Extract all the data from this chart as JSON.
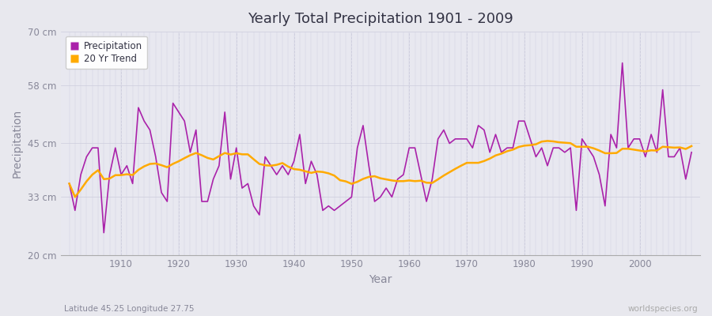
{
  "title": "Yearly Total Precipitation 1901 - 2009",
  "xlabel": "Year",
  "ylabel": "Precipitation",
  "subtitle": "Latitude 45.25 Longitude 27.75",
  "watermark": "worldspecies.org",
  "ylim": [
    20,
    70
  ],
  "yticks": [
    20,
    33,
    45,
    58,
    70
  ],
  "ytick_labels": [
    "20 cm",
    "33 cm",
    "45 cm",
    "58 cm",
    "70 cm"
  ],
  "years": [
    1901,
    1902,
    1903,
    1904,
    1905,
    1906,
    1907,
    1908,
    1909,
    1910,
    1911,
    1912,
    1913,
    1914,
    1915,
    1916,
    1917,
    1918,
    1919,
    1920,
    1921,
    1922,
    1923,
    1924,
    1925,
    1926,
    1927,
    1928,
    1929,
    1930,
    1931,
    1932,
    1933,
    1934,
    1935,
    1936,
    1937,
    1938,
    1939,
    1940,
    1941,
    1942,
    1943,
    1944,
    1945,
    1946,
    1947,
    1948,
    1949,
    1950,
    1951,
    1952,
    1953,
    1954,
    1955,
    1956,
    1957,
    1958,
    1959,
    1960,
    1961,
    1962,
    1963,
    1964,
    1965,
    1966,
    1967,
    1968,
    1969,
    1970,
    1971,
    1972,
    1973,
    1974,
    1975,
    1976,
    1977,
    1978,
    1979,
    1980,
    1981,
    1982,
    1983,
    1984,
    1985,
    1986,
    1987,
    1988,
    1989,
    1990,
    1991,
    1992,
    1993,
    1994,
    1995,
    1996,
    1997,
    1998,
    1999,
    2000,
    2001,
    2002,
    2003,
    2004,
    2005,
    2006,
    2007,
    2008,
    2009
  ],
  "precip": [
    36.0,
    30.0,
    38.0,
    42.0,
    44.0,
    44.0,
    25.0,
    38.0,
    44.0,
    38.0,
    40.0,
    36.0,
    53.0,
    50.0,
    48.0,
    42.0,
    34.0,
    32.0,
    54.0,
    52.0,
    50.0,
    43.0,
    48.0,
    32.0,
    32.0,
    37.0,
    40.0,
    52.0,
    37.0,
    44.0,
    35.0,
    36.0,
    31.0,
    29.0,
    42.0,
    40.0,
    38.0,
    40.0,
    38.0,
    41.0,
    47.0,
    36.0,
    41.0,
    38.0,
    30.0,
    31.0,
    30.0,
    31.0,
    32.0,
    33.0,
    44.0,
    49.0,
    40.0,
    32.0,
    33.0,
    35.0,
    33.0,
    37.0,
    38.0,
    44.0,
    44.0,
    38.0,
    32.0,
    37.0,
    46.0,
    48.0,
    45.0,
    46.0,
    46.0,
    46.0,
    44.0,
    49.0,
    48.0,
    43.0,
    47.0,
    43.0,
    44.0,
    44.0,
    50.0,
    50.0,
    46.0,
    42.0,
    44.0,
    40.0,
    44.0,
    44.0,
    43.0,
    44.0,
    30.0,
    46.0,
    44.0,
    42.0,
    38.0,
    31.0,
    47.0,
    44.0,
    63.0,
    44.0,
    46.0,
    46.0,
    42.0,
    47.0,
    43.0,
    57.0,
    42.0,
    42.0,
    44.0,
    37.0,
    43.0
  ],
  "precip_color": "#aa22aa",
  "trend_color": "#ffaa00",
  "fig_bg_color": "#e8e8ee",
  "plot_bg_color": "#e8e8f0",
  "legend_precip": "Precipitation",
  "legend_trend": "20 Yr Trend",
  "tick_color": "#888899",
  "label_color": "#888899",
  "title_color": "#333344",
  "grid_color": "#ccccdd",
  "bottom_spine_color": "#aaaaaa"
}
